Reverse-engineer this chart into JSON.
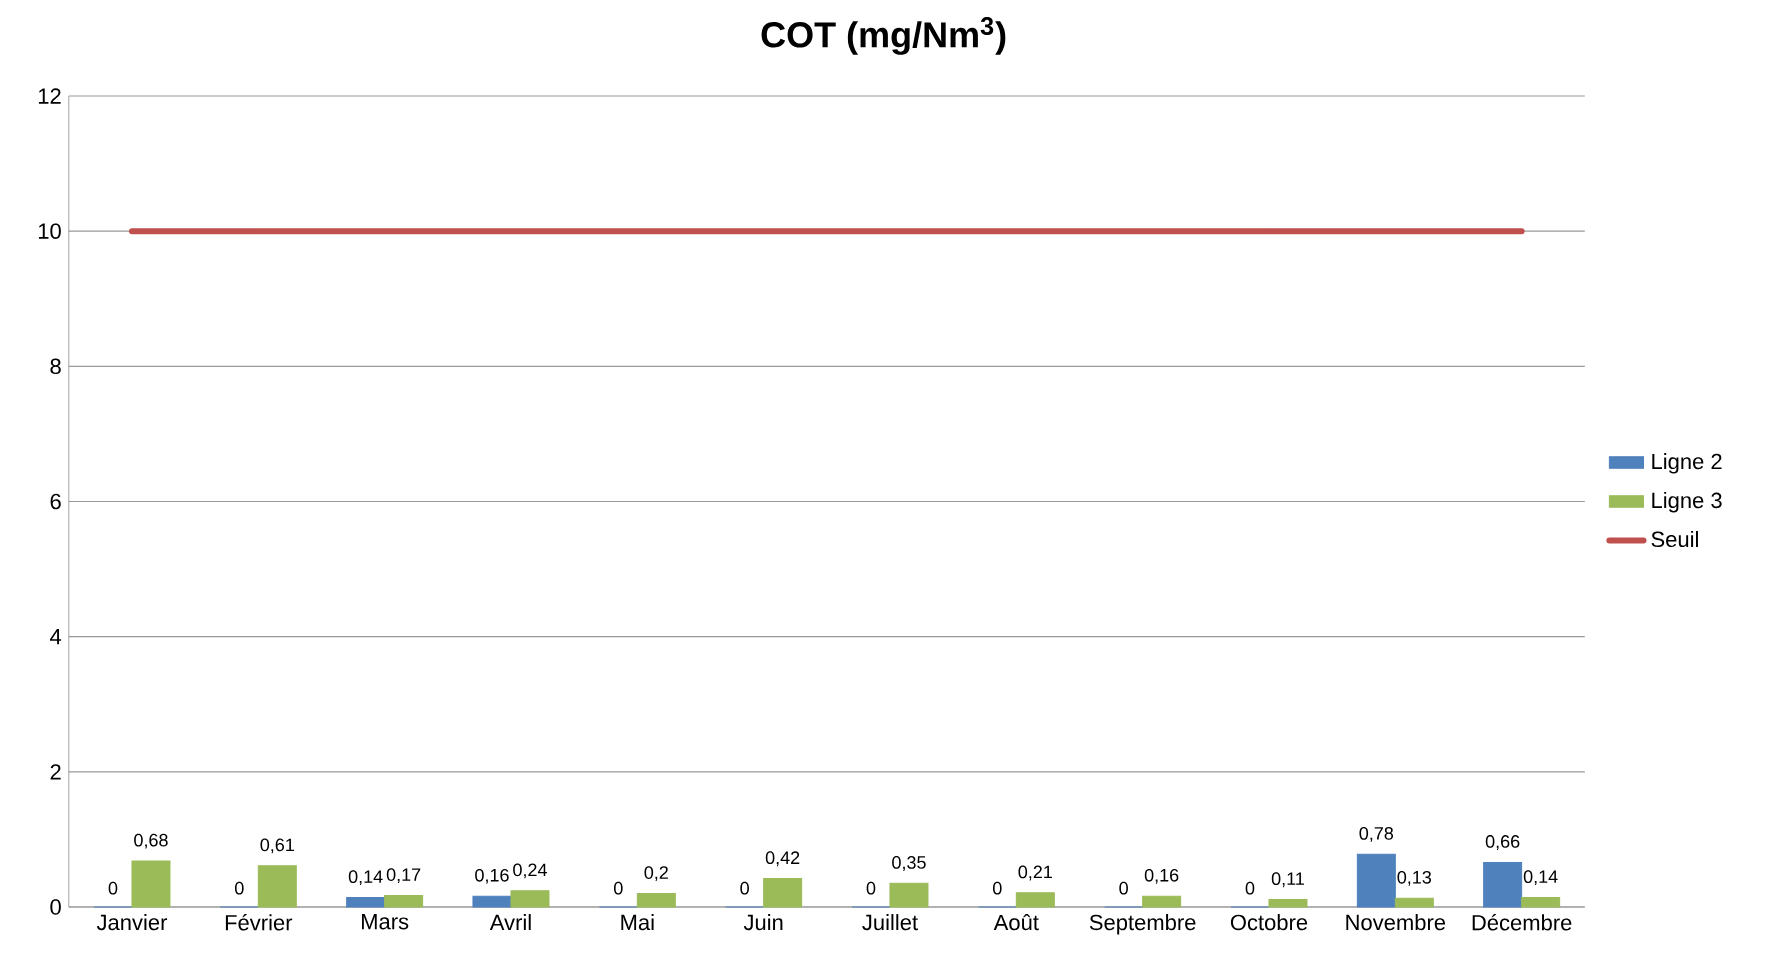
{
  "chart_data": {
    "type": "bar",
    "title": "COT (mg/Nm$^{3}$)",
    "categories": [
      "Janvier",
      "Février",
      "Mars",
      "Avril",
      "Mai",
      "Juin",
      "Juillet",
      "Août",
      "Septembre",
      "Octobre",
      "Novembre",
      "Décembre"
    ],
    "series": [
      {
        "name": "Ligne 2",
        "color": "#4f81bd",
        "values": [
          0,
          0,
          0.14,
          0.16,
          0,
          0,
          0,
          0,
          0,
          0,
          0.78,
          0.66
        ],
        "value_labels": [
          "0",
          "0",
          "0,14",
          "0,16",
          "0",
          "0",
          "0",
          "0",
          "0",
          "0",
          "0,78",
          "0,66"
        ]
      },
      {
        "name": "Ligne 3",
        "color": "#9bbb59",
        "values": [
          0.68,
          0.61,
          0.17,
          0.24,
          0.2,
          0.42,
          0.35,
          0.21,
          0.16,
          0.11,
          0.13,
          0.14
        ],
        "value_labels": [
          "0,68",
          "0,61",
          "0,17",
          "0,24",
          "0,2",
          "0,42",
          "0,35",
          "0,21",
          "0,16",
          "0,11",
          "0,13",
          "0,14"
        ]
      },
      {
        "name": "Seuil",
        "type": "line",
        "color": "#c0504d",
        "values": [
          10,
          10,
          10,
          10,
          10,
          10,
          10,
          10,
          10,
          10,
          10,
          10
        ]
      }
    ],
    "ylim": [
      0,
      12
    ],
    "yticks": [
      0,
      2,
      4,
      6,
      8,
      10,
      12
    ],
    "grid": "y",
    "legend": "right",
    "marker": "none"
  }
}
